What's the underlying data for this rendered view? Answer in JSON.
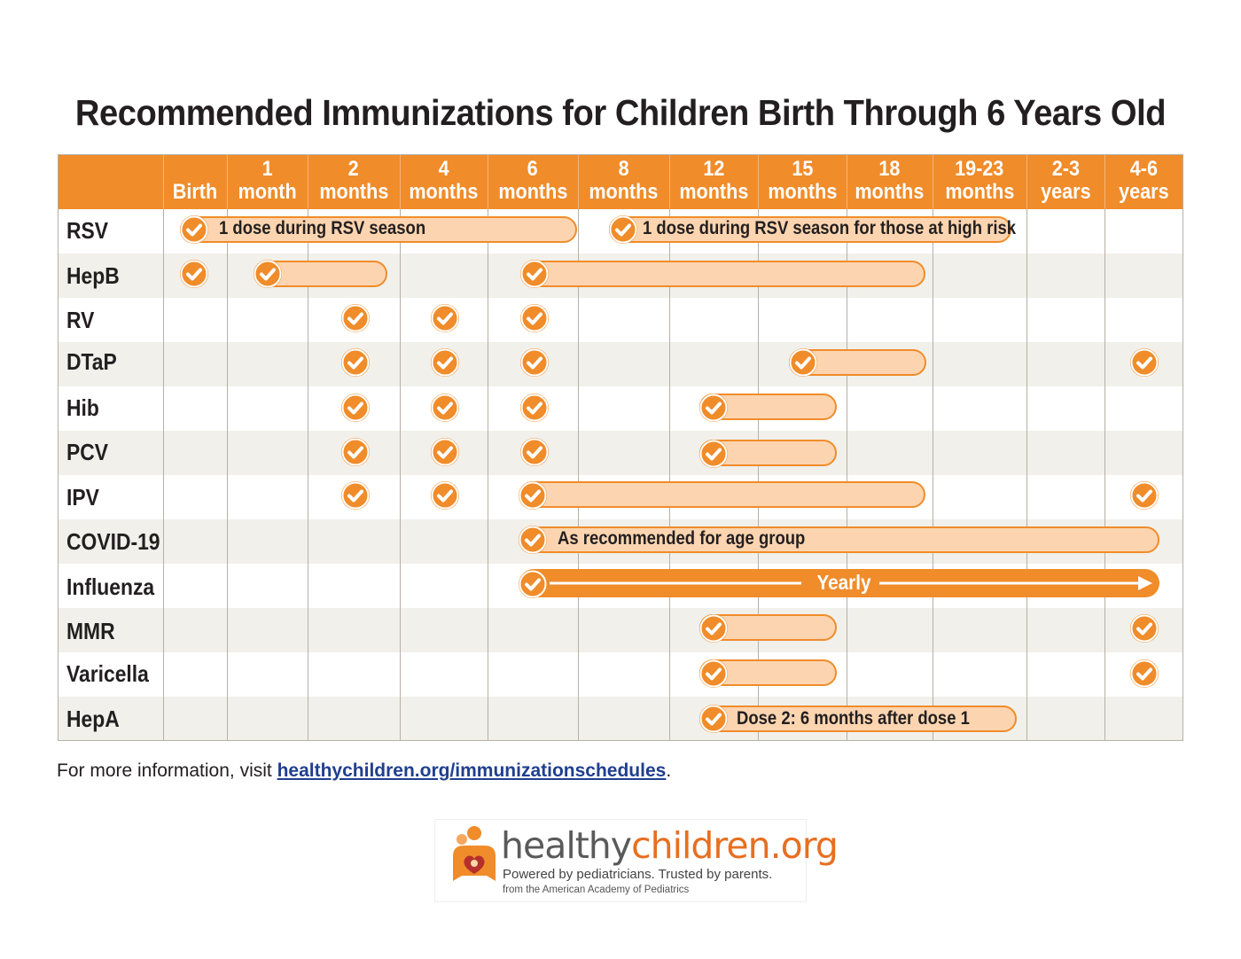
{
  "title": "Recommended Immunizations for Children Birth Through 6 Years Old",
  "colors": {
    "accent": "#f08c2a",
    "bar_fill": "#fcd5b0",
    "row_alt": "#f1f0eb",
    "link": "#1f3f8f"
  },
  "columns": [
    {
      "line1": "",
      "line2": "Birth"
    },
    {
      "line1": "1",
      "line2": "month"
    },
    {
      "line1": "2",
      "line2": "months"
    },
    {
      "line1": "4",
      "line2": "months"
    },
    {
      "line1": "6",
      "line2": "months"
    },
    {
      "line1": "8",
      "line2": "months"
    },
    {
      "line1": "12",
      "line2": "months"
    },
    {
      "line1": "15",
      "line2": "months"
    },
    {
      "line1": "18",
      "line2": "months"
    },
    {
      "line1": "19-23",
      "line2": "months"
    },
    {
      "line1": "2-3",
      "line2": "years"
    },
    {
      "line1": "4-6",
      "line2": "years"
    }
  ],
  "vaccines": [
    "RSV",
    "HepB",
    "RV",
    "DTaP",
    "Hib",
    "PCV",
    "IPV",
    "COVID-19",
    "Influenza",
    "MMR",
    "Varicella",
    "HepA"
  ],
  "bar_labels": {
    "rsv_1": "1 dose during RSV season",
    "rsv_2": "1 dose during RSV season for those at high risk",
    "covid": "As recommended for age group",
    "influenza": "Yearly",
    "hepa_bold": "Dose 2:",
    "hepa_rest": " 6 months after dose 1"
  },
  "footer": {
    "prefix": "For more information, visit ",
    "link": "healthychildren.org/immunizationschedules",
    "suffix": "."
  },
  "logo": {
    "brand_part1": "healthy",
    "brand_part2": "children.",
    "brand_part3": "org",
    "tagline": "Powered by pediatricians. Trusted by parents.",
    "sub": "from the American Academy of Pediatrics"
  }
}
